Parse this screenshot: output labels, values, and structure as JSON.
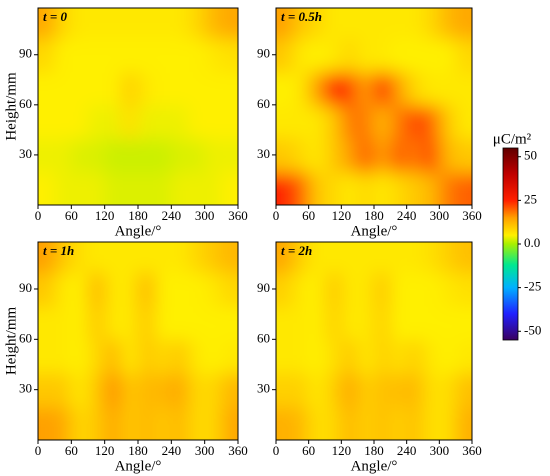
{
  "chart_data": [
    {
      "type": "heatmap",
      "title": "t = 0",
      "xlabel": "Angle/°",
      "ylabel": "Height/mm",
      "x": [
        15,
        45,
        75,
        105,
        135,
        165,
        195,
        225,
        255,
        285,
        315,
        345
      ],
      "y": [
        10,
        30,
        50,
        70,
        90,
        110
      ],
      "values": [
        [
          5,
          4,
          4,
          4,
          3,
          3,
          3,
          3,
          4,
          4,
          4,
          5
        ],
        [
          4,
          4,
          3,
          3,
          2,
          2,
          2,
          2,
          3,
          3,
          4,
          4
        ],
        [
          5,
          5,
          5,
          4,
          4,
          7,
          4,
          4,
          4,
          5,
          5,
          5
        ],
        [
          5,
          5,
          5,
          5,
          5,
          9,
          6,
          5,
          5,
          5,
          5,
          5
        ],
        [
          8,
          5,
          5,
          5,
          5,
          5,
          5,
          5,
          5,
          5,
          6,
          7
        ],
        [
          14,
          8,
          6,
          6,
          6,
          6,
          6,
          6,
          6,
          8,
          12,
          14
        ]
      ],
      "xlim": [
        0,
        360
      ],
      "xticks": [
        0,
        60,
        120,
        180,
        240,
        300,
        360
      ],
      "ylim": [
        0,
        118
      ],
      "yticks": [
        30,
        60,
        90
      ]
    },
    {
      "type": "heatmap",
      "title": "t = 0.5h",
      "xlabel": "Angle/°",
      "x": [
        15,
        45,
        75,
        105,
        135,
        165,
        195,
        225,
        255,
        285,
        315,
        345
      ],
      "y": [
        10,
        30,
        50,
        70,
        90,
        110
      ],
      "values": [
        [
          25,
          20,
          10,
          8,
          6,
          8,
          6,
          8,
          10,
          12,
          18,
          20
        ],
        [
          10,
          8,
          6,
          10,
          15,
          20,
          15,
          20,
          18,
          22,
          12,
          10
        ],
        [
          6,
          6,
          6,
          10,
          18,
          18,
          12,
          18,
          22,
          20,
          10,
          6
        ],
        [
          5,
          6,
          15,
          25,
          22,
          15,
          25,
          15,
          8,
          6,
          6,
          6
        ],
        [
          10,
          6,
          5,
          6,
          8,
          6,
          6,
          5,
          5,
          5,
          5,
          8
        ],
        [
          15,
          10,
          8,
          6,
          6,
          6,
          6,
          6,
          6,
          8,
          12,
          14
        ]
      ],
      "xlim": [
        0,
        360
      ],
      "xticks": [
        0,
        60,
        120,
        180,
        240,
        300,
        360
      ],
      "ylim": [
        0,
        118
      ],
      "yticks": [
        30,
        60,
        90
      ]
    },
    {
      "type": "heatmap",
      "title": "t = 1h",
      "xlabel": "Angle/°",
      "ylabel": "Height/mm",
      "x": [
        15,
        45,
        75,
        105,
        135,
        165,
        195,
        225,
        255,
        285,
        315,
        345
      ],
      "y": [
        10,
        30,
        50,
        70,
        90,
        110
      ],
      "values": [
        [
          15,
          14,
          8,
          10,
          14,
          10,
          12,
          10,
          12,
          8,
          8,
          14
        ],
        [
          10,
          10,
          6,
          10,
          16,
          10,
          12,
          12,
          14,
          8,
          8,
          12
        ],
        [
          6,
          6,
          5,
          8,
          12,
          6,
          10,
          8,
          10,
          6,
          5,
          6
        ],
        [
          6,
          6,
          5,
          10,
          6,
          6,
          10,
          5,
          5,
          5,
          5,
          5
        ],
        [
          10,
          6,
          5,
          12,
          6,
          6,
          12,
          5,
          5,
          5,
          6,
          8
        ],
        [
          15,
          10,
          7,
          6,
          6,
          6,
          6,
          6,
          6,
          8,
          10,
          12
        ]
      ],
      "xlim": [
        0,
        360
      ],
      "xticks": [
        0,
        60,
        120,
        180,
        240,
        300,
        360
      ],
      "ylim": [
        0,
        118
      ],
      "yticks": [
        30,
        60,
        90
      ]
    },
    {
      "type": "heatmap",
      "title": "t = 2h",
      "xlabel": "Angle/°",
      "x": [
        15,
        45,
        75,
        105,
        135,
        165,
        195,
        225,
        255,
        285,
        315,
        345
      ],
      "y": [
        10,
        30,
        50,
        70,
        90,
        110
      ],
      "values": [
        [
          13,
          12,
          7,
          8,
          12,
          9,
          11,
          9,
          11,
          7,
          7,
          13
        ],
        [
          9,
          9,
          6,
          9,
          14,
          9,
          11,
          11,
          12,
          7,
          7,
          11
        ],
        [
          6,
          6,
          5,
          7,
          10,
          6,
          9,
          7,
          9,
          6,
          5,
          6
        ],
        [
          6,
          6,
          5,
          9,
          6,
          6,
          9,
          5,
          5,
          5,
          5,
          5
        ],
        [
          9,
          6,
          5,
          10,
          6,
          6,
          10,
          5,
          5,
          5,
          6,
          7
        ],
        [
          14,
          9,
          6,
          6,
          6,
          6,
          6,
          6,
          6,
          7,
          9,
          11
        ]
      ],
      "xlim": [
        0,
        360
      ],
      "xticks": [
        0,
        60,
        120,
        180,
        240,
        300,
        360
      ],
      "ylim": [
        0,
        118
      ],
      "yticks": [
        30,
        60,
        90
      ]
    }
  ],
  "colorbar": {
    "label": "μC/m²",
    "lim": [
      -55,
      55
    ],
    "ticks": [
      50,
      25,
      {
        "value": 0,
        "label": "0.0"
      },
      -25,
      -50
    ],
    "stops": [
      -55,
      -40,
      -25,
      -12,
      0,
      5,
      15,
      25,
      40,
      55
    ],
    "colors": [
      "#3a0060",
      "#2020ff",
      "#00b0ff",
      "#00e890",
      "#a8f000",
      "#fff000",
      "#ffa000",
      "#ff2000",
      "#c00000",
      "#600000"
    ]
  }
}
